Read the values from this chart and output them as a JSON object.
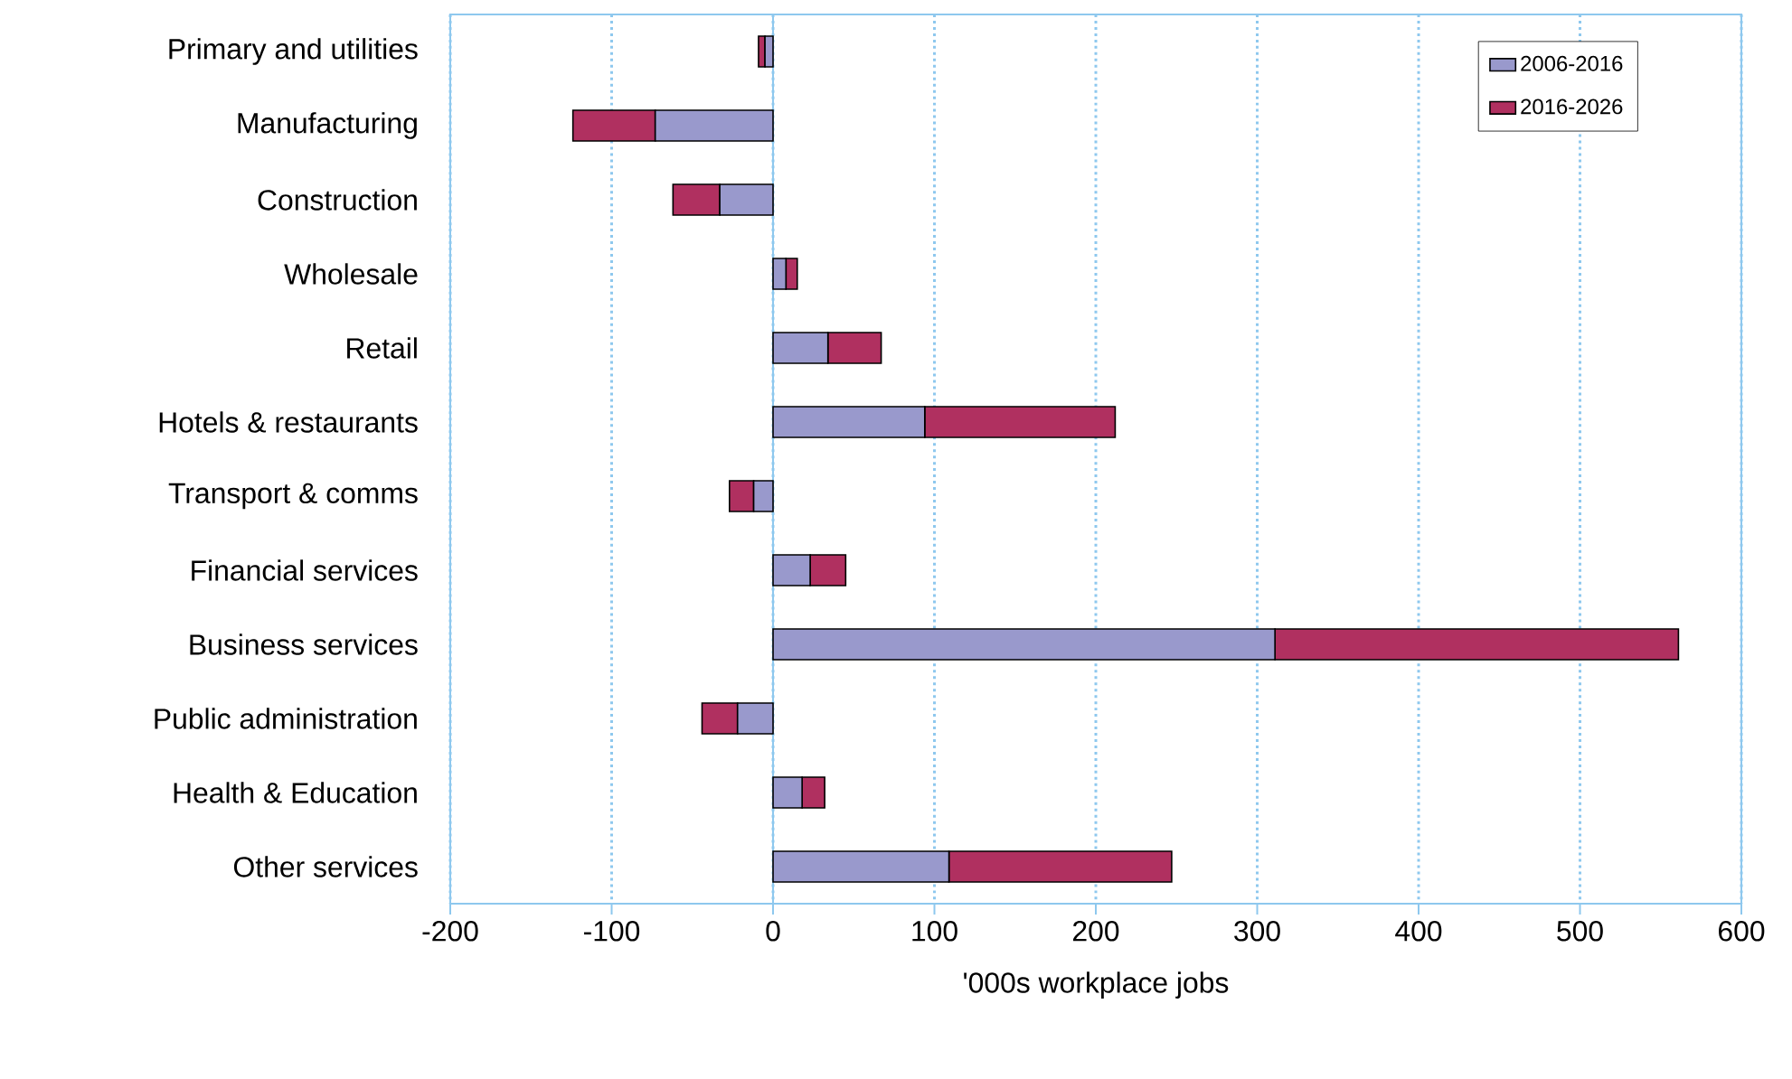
{
  "chart_data": {
    "type": "bar",
    "orientation": "horizontal",
    "stacked": true,
    "xlabel": "'000s workplace jobs",
    "categories": [
      "Primary and utilities",
      "Manufacturing",
      "Construction",
      "Wholesale",
      "Retail",
      "Hotels & restaurants",
      "Transport & comms",
      "Financial services",
      "Business services",
      "Public administration",
      "Health & Education",
      "Other services"
    ],
    "series": [
      {
        "name": "2006-2016",
        "color": "#9999cc",
        "values": [
          -5,
          -73,
          -33,
          8,
          34,
          94,
          -12,
          23,
          311,
          -22,
          18,
          109
        ]
      },
      {
        "name": "2016-2026",
        "color": "#b03060",
        "values": [
          -4,
          -51,
          -29,
          7,
          33,
          118,
          -15,
          22,
          250,
          -22,
          14,
          138
        ]
      }
    ],
    "xlim": [
      -200,
      600
    ],
    "xticks": [
      -200,
      -100,
      0,
      100,
      200,
      300,
      400,
      500,
      600
    ],
    "ref_lines": [
      {
        "axis": "x",
        "value": 0,
        "color": "#8ec8ee",
        "line_style": "solid"
      }
    ],
    "grid": "x",
    "legend": "top right"
  }
}
